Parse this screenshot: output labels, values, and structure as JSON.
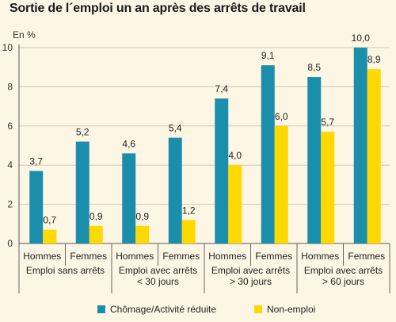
{
  "chart_data": {
    "type": "bar",
    "title": "Sortie de l´emploi un an après des arrêts de travail",
    "unit_label": "En %",
    "ylim": [
      0,
      10
    ],
    "y_ticks": [
      "0",
      "2",
      "4",
      "6",
      "8",
      "10"
    ],
    "grid": true,
    "legend_position": "bottom",
    "groups": [
      {
        "label_lines": [
          "Emploi sans arrêts"
        ],
        "subcategories": [
          "Hommes",
          "Femmes"
        ]
      },
      {
        "label_lines": [
          "Emploi avec arrêts",
          "< 30 jours"
        ],
        "subcategories": [
          "Hommes",
          "Femmes"
        ]
      },
      {
        "label_lines": [
          "Emploi avec arrêts",
          "> 30 jours"
        ],
        "subcategories": [
          "Hommes",
          "Femmes"
        ]
      },
      {
        "label_lines": [
          "Emploi avec arrêts",
          "> 60 jours"
        ],
        "subcategories": [
          "Hommes",
          "Femmes"
        ]
      }
    ],
    "series": [
      {
        "name": "Chômage/Activité réduite",
        "color": "#1b8eab",
        "values": [
          3.7,
          5.2,
          4.6,
          5.4,
          7.4,
          9.1,
          8.5,
          10.0
        ],
        "labels": [
          "3,7",
          "5,2",
          "4,6",
          "5,4",
          "7,4",
          "9,1",
          "8,5",
          "10,0"
        ]
      },
      {
        "name": "Non-emploi",
        "color": "#ffd800",
        "values": [
          0.7,
          0.9,
          0.9,
          1.2,
          4.0,
          6.0,
          5.7,
          8.9
        ],
        "labels": [
          "0,7",
          "0,9",
          "0,9",
          "1,2",
          "4,0",
          "6,0",
          "5,7",
          "8,9"
        ]
      }
    ]
  }
}
